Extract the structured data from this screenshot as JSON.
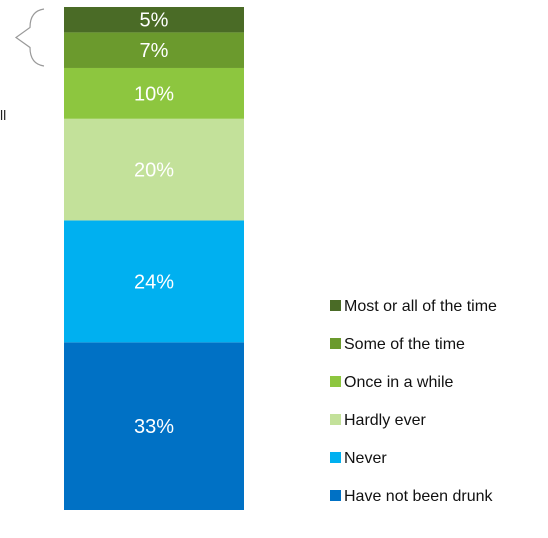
{
  "chart_data": {
    "type": "bar",
    "stacked": true,
    "categories": [
      ""
    ],
    "series": [
      {
        "name": "Have not been drunk",
        "value": 33,
        "label": "33%",
        "color": "#0071C5"
      },
      {
        "name": "Never",
        "value": 24,
        "label": "24%",
        "color": "#00B0F0"
      },
      {
        "name": "Hardly ever",
        "value": 20,
        "label": "20%",
        "color": "#C3E19A"
      },
      {
        "name": "Once in a while",
        "value": 10,
        "label": "10%",
        "color": "#8DC63F"
      },
      {
        "name": "Some of the time",
        "value": 7,
        "label": "7%",
        "color": "#6B9A2D"
      },
      {
        "name": "Most or all of the time",
        "value": 5,
        "label": "5%",
        "color": "#4A6B26"
      }
    ],
    "legend_position": "right",
    "legend_order": [
      "Most or all of the time",
      "Some of the time",
      "Once in a while",
      "Hardly ever",
      "Never",
      "Have not been drunk"
    ],
    "side_text": "ll",
    "bracket_color": "#9a9a9a"
  }
}
